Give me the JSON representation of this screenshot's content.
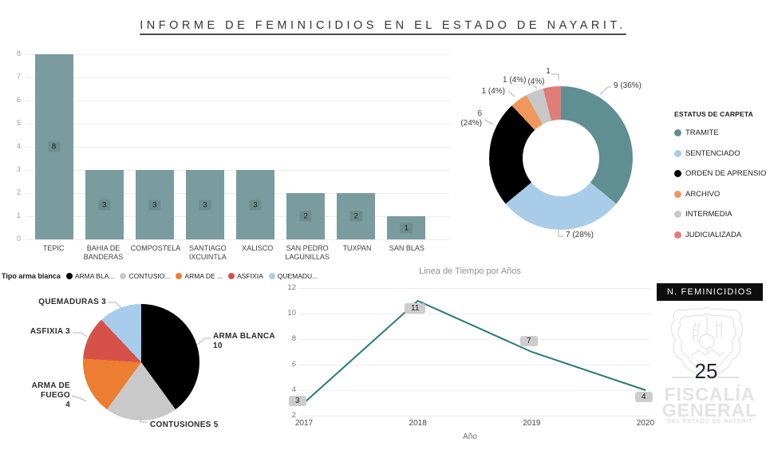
{
  "page_title": "INFORME DE FEMINICIDIOS EN EL ESTADO DE NAYARIT.",
  "chart_data": [
    {
      "id": "feminicidios-por-municipio",
      "type": "bar",
      "categories": [
        "TEPIC",
        "BAHIA DE BANDERAS",
        "COMPOSTELA",
        "SANTIAGO IXCUINTLA",
        "XALISCO",
        "SAN PEDRO LAGUNILLAS",
        "TUXPAN",
        "SAN BLAS"
      ],
      "values": [
        8,
        3,
        3,
        3,
        3,
        2,
        2,
        1
      ],
      "yticks": [
        0,
        1,
        2,
        3,
        4,
        5,
        6,
        7,
        8
      ],
      "ylim": [
        0,
        8
      ],
      "bar_color": "#7a9c9e",
      "grid": true,
      "legend_position": "none"
    },
    {
      "id": "estatus-de-carpeta",
      "type": "pie",
      "subtype": "donut",
      "legend_title": "ESTATUS DE CARPETA",
      "legend_position": "right",
      "total": 25,
      "segments": [
        {
          "label": "TRAMITE",
          "value": 9,
          "percent": "36%",
          "color": "#5f8f92",
          "callout": "9 (36%)"
        },
        {
          "label": "SENTENCIADO",
          "value": 7,
          "percent": "28%",
          "color": "#a9cde9",
          "callout": "7 (28%)"
        },
        {
          "label": "ORDEN DE APRENSION",
          "value": 6,
          "percent": "24%",
          "color": "#000000",
          "callout_line1": "6",
          "callout_line2": "(24%)"
        },
        {
          "label": "ARCHIVO",
          "value": 1,
          "percent": "4%",
          "color": "#f0975c",
          "callout": "1 (4%)"
        },
        {
          "label": "INTERMEDIA",
          "value": 1,
          "percent": "4%",
          "color": "#c8c8c8",
          "callout": "1 (4%)"
        },
        {
          "label": "JUDICIALIZADA",
          "value": 1,
          "percent": "4%",
          "color": "#e07d78",
          "callout_line1": "1",
          "callout_line2": "(4%)"
        }
      ]
    },
    {
      "id": "tipo-arma-blanca",
      "type": "pie",
      "legend_title": "Tipo arma blanca",
      "legend_position": "top",
      "total": 25,
      "segments": [
        {
          "label": "ARMA BLANCA",
          "legend_label": "ARMA BLA...",
          "value": 10,
          "color": "#000000",
          "callout_line1": "ARMA BLANCA",
          "callout_line2": "10"
        },
        {
          "label": "CONTUSIONES",
          "legend_label": "CONTUSIO...",
          "value": 5,
          "color": "#c9c9c9",
          "callout": "CONTUSIONES 5"
        },
        {
          "label": "ARMA DE FUEGO",
          "legend_label": "ARMA DE ...",
          "value": 4,
          "color": "#ed7d31",
          "callout_line1": "ARMA DE FUEGO",
          "callout_line2": "4"
        },
        {
          "label": "ASFIXIA",
          "legend_label": "ASFIXIA",
          "value": 3,
          "color": "#d65248",
          "callout": "ASFIXIA 3"
        },
        {
          "label": "QUEMADURAS",
          "legend_label": "QUEMADU...",
          "value": 3,
          "color": "#a8cdec",
          "callout": "QUEMADURAS 3"
        }
      ]
    },
    {
      "id": "linea-de-tiempo",
      "type": "line",
      "title": "Linea de Tiempo por Años",
      "x": [
        "2017",
        "2018",
        "2019",
        "2020"
      ],
      "values": [
        3,
        11,
        7,
        4
      ],
      "xlabel": "Año",
      "yticks": [
        2,
        4,
        6,
        8,
        10,
        12
      ],
      "ylim": [
        2,
        12
      ],
      "line_color": "#26797d",
      "grid": true
    }
  ],
  "badge": {
    "label": "N. FEMINICIDIOS",
    "value": "25",
    "org_name_line1": "FISCALÍA",
    "org_name_line2": "GENERAL",
    "org_subtitle": "DEL ESTADO DE NAYARIT"
  }
}
